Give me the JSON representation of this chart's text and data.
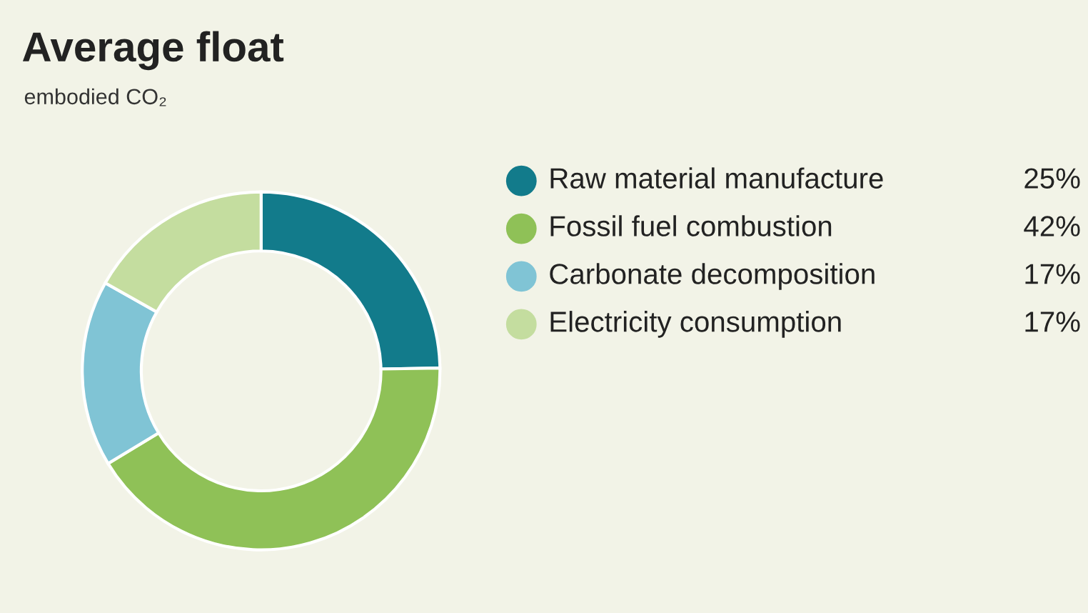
{
  "chart_data": {
    "type": "donut",
    "title": "Average float",
    "subtitle": "embodied CO₂",
    "categories": [
      "Raw material manufacture",
      "Fossil fuel combustion",
      "Carbonate decomposition",
      "Electricity consumption"
    ],
    "values": [
      25,
      42,
      17,
      17
    ],
    "value_labels": [
      "25%",
      "42%",
      "17%",
      "17%"
    ],
    "colors": [
      "#127b8b",
      "#8fc157",
      "#80c4d5",
      "#c4dd9f"
    ],
    "legend": "right"
  }
}
